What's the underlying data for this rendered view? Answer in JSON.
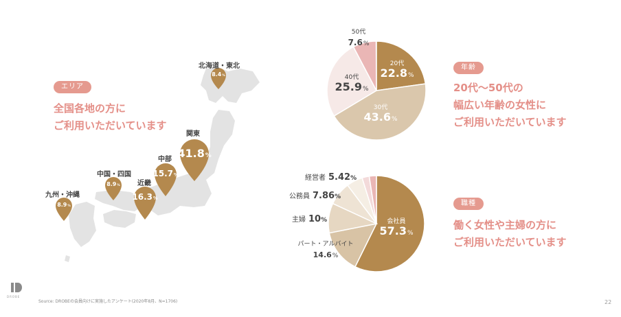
{
  "area": {
    "tag": "エリア",
    "headline": [
      "全国各地の方に",
      "ご利用いただいています"
    ],
    "regions": [
      {
        "label": "北海道・東北",
        "value": 8.4,
        "display": "8.4"
      },
      {
        "label": "関東",
        "value": 41.8,
        "display": "41.8"
      },
      {
        "label": "中部",
        "value": 15.7,
        "display": "15.7"
      },
      {
        "label": "近畿",
        "value": 16.3,
        "display": "16.3"
      },
      {
        "label": "中国・四国",
        "value": 8.9,
        "display": "8.9"
      },
      {
        "label": "九州・沖縄",
        "value": 8.9,
        "display": "8.9"
      }
    ],
    "unit": "%"
  },
  "age": {
    "tag": "年齢",
    "headline": [
      "20代〜50代の",
      "幅広い年齢の女性に",
      "ご利用いただいています"
    ]
  },
  "occupation": {
    "tag": "職種",
    "headline": [
      "働く女性や主婦の方に",
      "ご利用いただいています"
    ]
  },
  "footer": {
    "source": "Source: DROBEの会員向けに実施したアンケート(2020年8月、N=1706)",
    "page_number": "22",
    "logo_text": "DROBE"
  },
  "colors": {
    "accent": "#e59a8f",
    "headline": "#e48f88",
    "gold": "#b4894e",
    "map": "#e3e3e3"
  },
  "chart_data": [
    {
      "type": "pie",
      "categories": [
        "20代",
        "30代",
        "40代",
        "50代"
      ],
      "values": [
        22.8,
        43.6,
        25.9,
        7.6
      ],
      "unit": "%",
      "colors": [
        "#b4894e",
        "#dac7ac",
        "#f6e9e7",
        "#eab6b5"
      ]
    },
    {
      "type": "pie",
      "categories": [
        "会社員",
        "パート・アルバイト",
        "主婦",
        "公務員",
        "経営者"
      ],
      "values": [
        57.3,
        14.6,
        10,
        7.86,
        5.42
      ],
      "unit": "%",
      "colors": [
        "#b4894e",
        "#d8c3a5",
        "#e6d7c2",
        "#eee3d4",
        "#f5eee4",
        "#f3dada",
        "#eab6b5"
      ]
    }
  ]
}
